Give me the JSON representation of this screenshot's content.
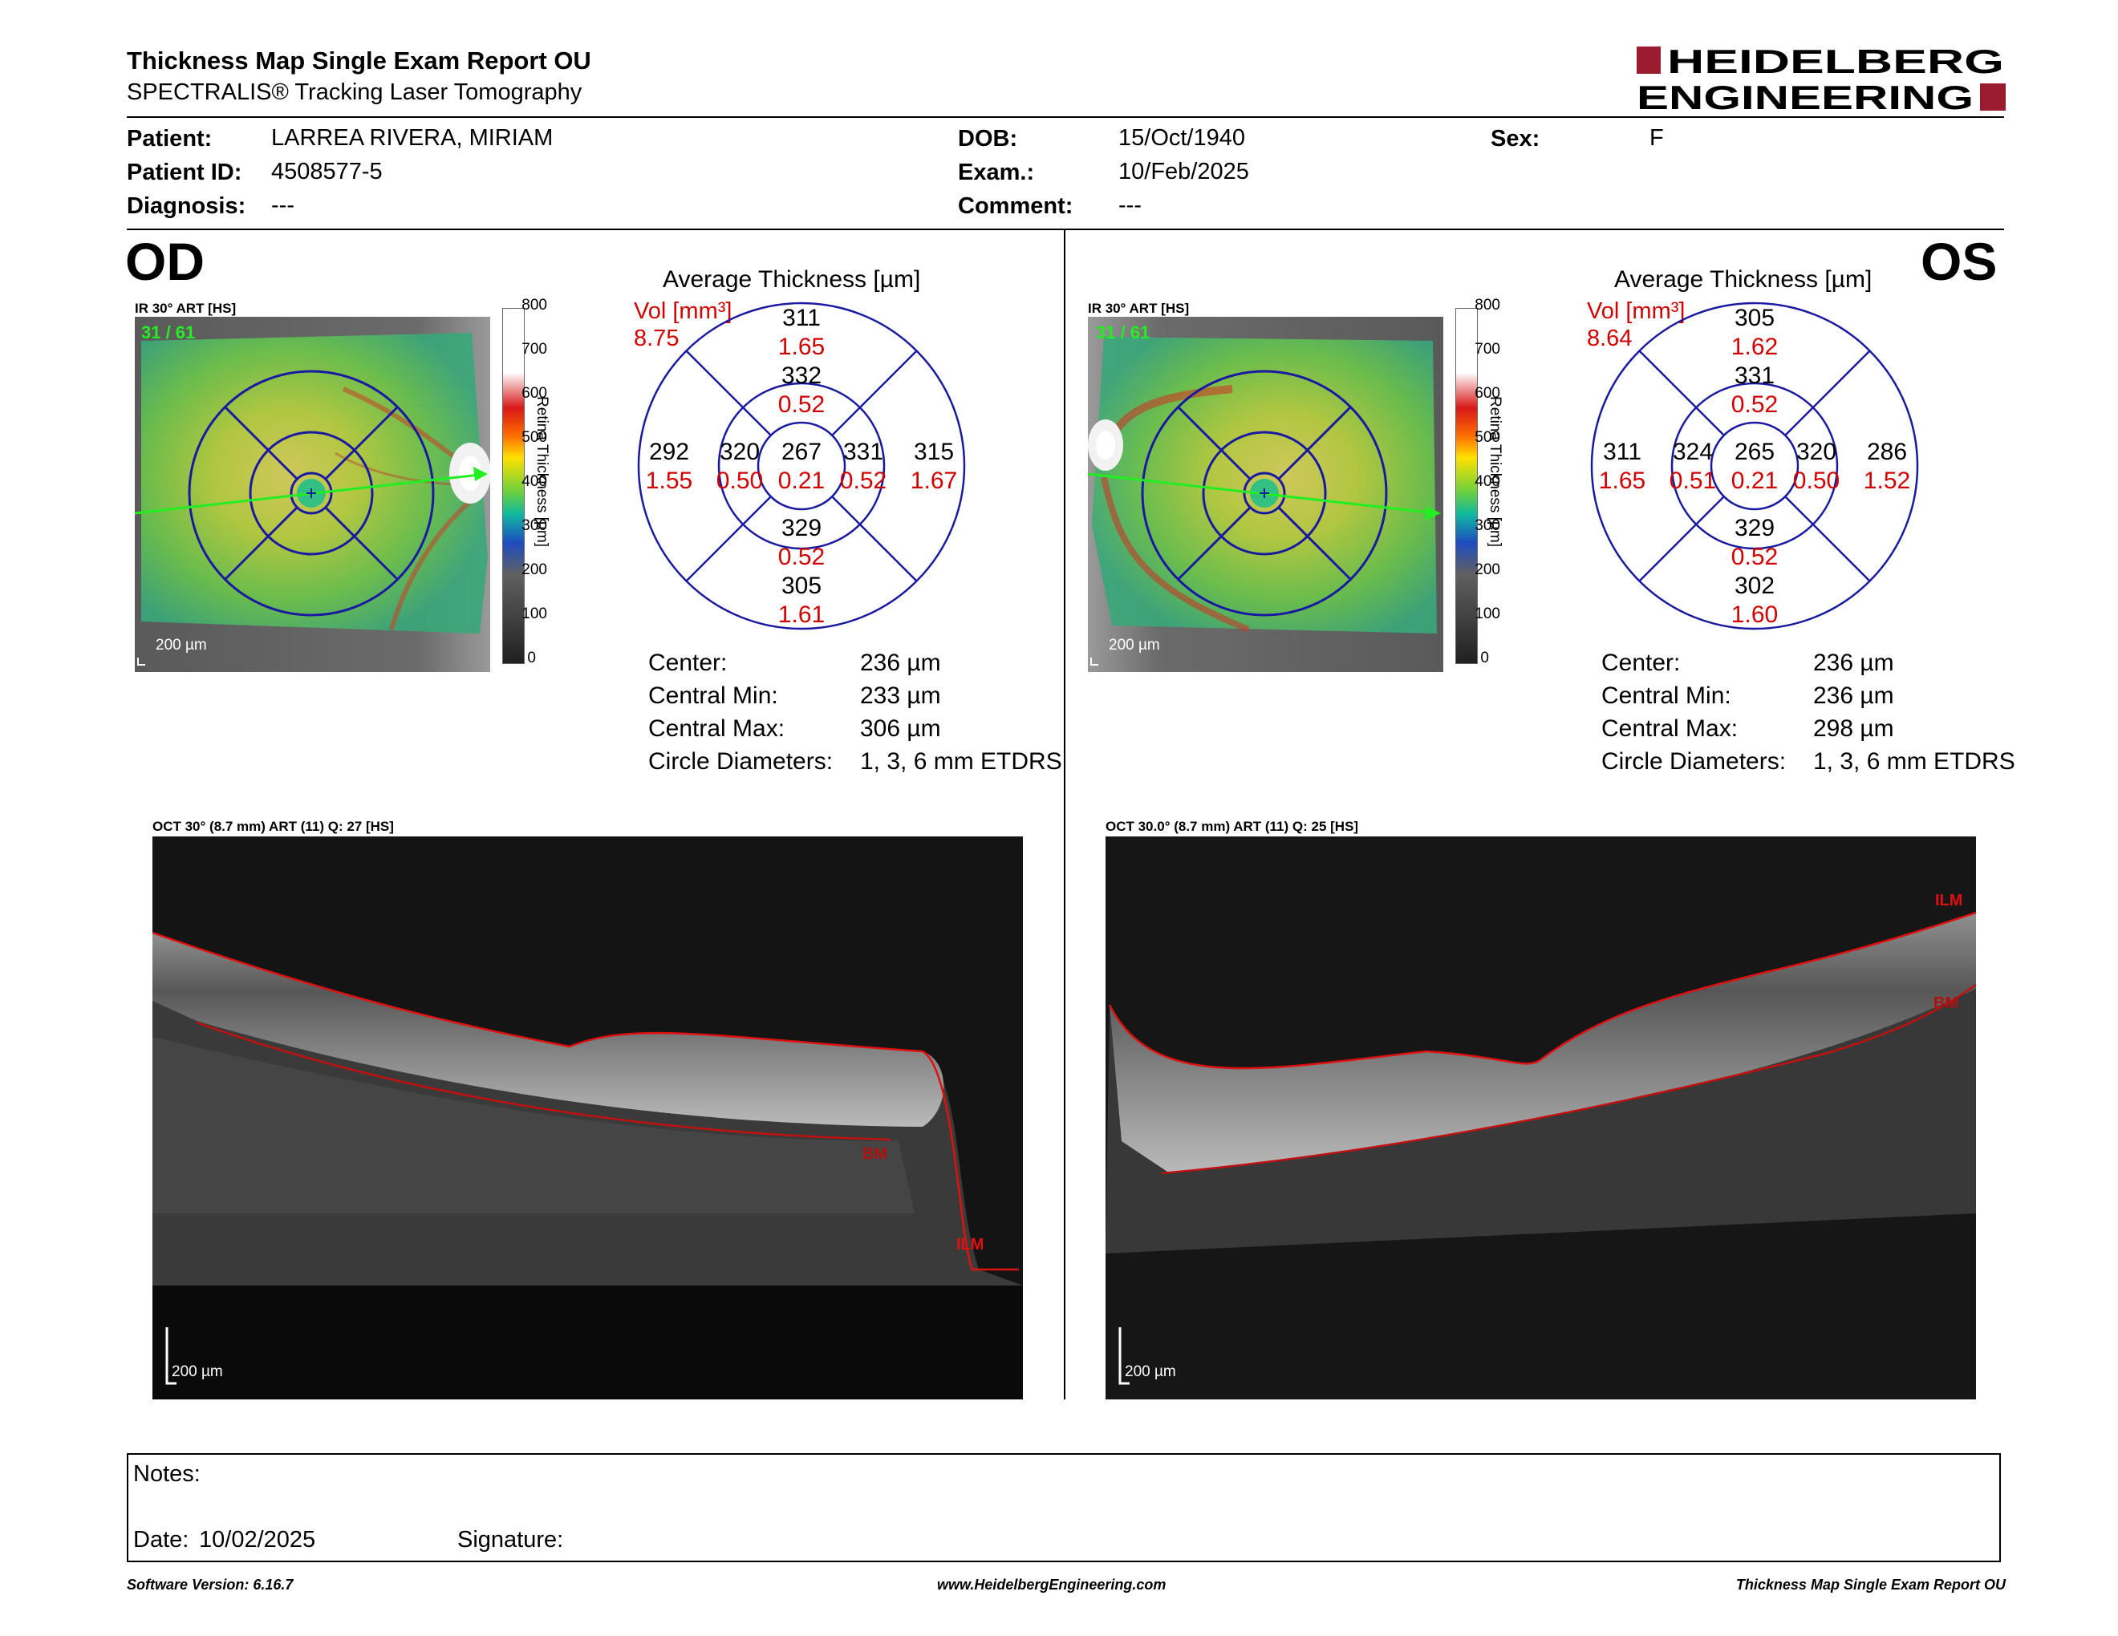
{
  "header": {
    "title": "Thickness Map Single Exam Report OU",
    "subtitle": "SPECTRALIS® Tracking Laser Tomography",
    "logo_line1": "HEIDELBERG",
    "logo_line2": "ENGINEERING"
  },
  "patient": {
    "patient_label": "Patient:",
    "patient_value": "LARREA RIVERA, MIRIAM",
    "id_label": "Patient ID:",
    "id_value": "4508577-5",
    "diagnosis_label": "Diagnosis:",
    "diagnosis_value": "---",
    "dob_label": "DOB:",
    "dob_value": "15/Oct/1940",
    "exam_label": "Exam.:",
    "exam_value": "10/Feb/2025",
    "comment_label": "Comment:",
    "comment_value": "---",
    "sex_label": "Sex:",
    "sex_value": "F"
  },
  "colorbar": {
    "ticks": [
      "800",
      "700",
      "600",
      "500",
      "400",
      "300",
      "200",
      "100",
      "0"
    ],
    "label": "Retina Thickness [µm]"
  },
  "od": {
    "eye": "OD",
    "ir_label": "IR 30° ART [HS]",
    "ir_frame": "31 / 61",
    "scale": "200 µm",
    "avg_title": "Average Thickness [µm]",
    "vol_label": "Vol [mm³]",
    "vol_total": "8.75",
    "thickness": {
      "center": "267",
      "inner_sup": "332",
      "inner_temp": "320",
      "inner_nasal": "331",
      "inner_inf": "329",
      "outer_sup": "311",
      "outer_temp": "292",
      "outer_nasal": "315",
      "outer_inf": "305"
    },
    "volume": {
      "center": "0.21",
      "inner_sup": "0.52",
      "inner_temp": "0.50",
      "inner_nasal": "0.52",
      "inner_inf": "0.52",
      "outer_sup": "1.65",
      "outer_temp": "1.55",
      "outer_nasal": "1.67",
      "outer_inf": "1.61"
    },
    "stats": {
      "center_label": "Center:",
      "center_value": "236 µm",
      "min_label": "Central Min:",
      "min_value": "233 µm",
      "max_label": "Central Max:",
      "max_value": "306 µm",
      "diam_label": "Circle Diameters:",
      "diam_value": "1, 3, 6 mm ETDRS"
    },
    "oct_label": "OCT 30° (8.7 mm) ART (11) Q: 27 [HS]",
    "oct_scale": "200 µm",
    "ilm": "ILM",
    "bm": "BM"
  },
  "os": {
    "eye": "OS",
    "ir_label": "IR 30° ART [HS]",
    "ir_frame": "31 / 61",
    "scale": "200 µm",
    "avg_title": "Average Thickness [µm]",
    "vol_label": "Vol [mm³]",
    "vol_total": "8.64",
    "thickness": {
      "center": "265",
      "inner_sup": "331",
      "inner_temp": "320",
      "inner_nasal": "324",
      "inner_inf": "329",
      "outer_sup": "305",
      "outer_temp": "286",
      "outer_nasal": "311",
      "outer_inf": "302"
    },
    "volume": {
      "center": "0.21",
      "inner_sup": "0.52",
      "inner_temp": "0.50",
      "inner_nasal": "0.51",
      "inner_inf": "0.52",
      "outer_sup": "1.62",
      "outer_temp": "1.52",
      "outer_nasal": "1.65",
      "outer_inf": "1.60"
    },
    "stats": {
      "center_label": "Center:",
      "center_value": "236 µm",
      "min_label": "Central Min:",
      "min_value": "236 µm",
      "max_label": "Central Max:",
      "max_value": "298 µm",
      "diam_label": "Circle Diameters:",
      "diam_value": "1, 3, 6 mm ETDRS"
    },
    "oct_label": "OCT 30.0° (8.7 mm) ART (11) Q: 25 [HS]",
    "oct_scale": "200 µm",
    "ilm": "ILM",
    "bm": "BM"
  },
  "notes": {
    "notes_label": "Notes:",
    "date_label": "Date:",
    "date_value": "10/02/2025",
    "signature_label": "Signature:"
  },
  "footer": {
    "software": "Software Version: 6.16.7",
    "website": "www.HeidelbergEngineering.com",
    "report": "Thickness Map Single Exam Report OU"
  },
  "colors": {
    "etdrs_blue": "#1a1aa0",
    "volume_red": "#d00000",
    "logo_red": "#9b1b30",
    "segmentation_red": "#e01010",
    "scan_green": "#22ee22"
  }
}
